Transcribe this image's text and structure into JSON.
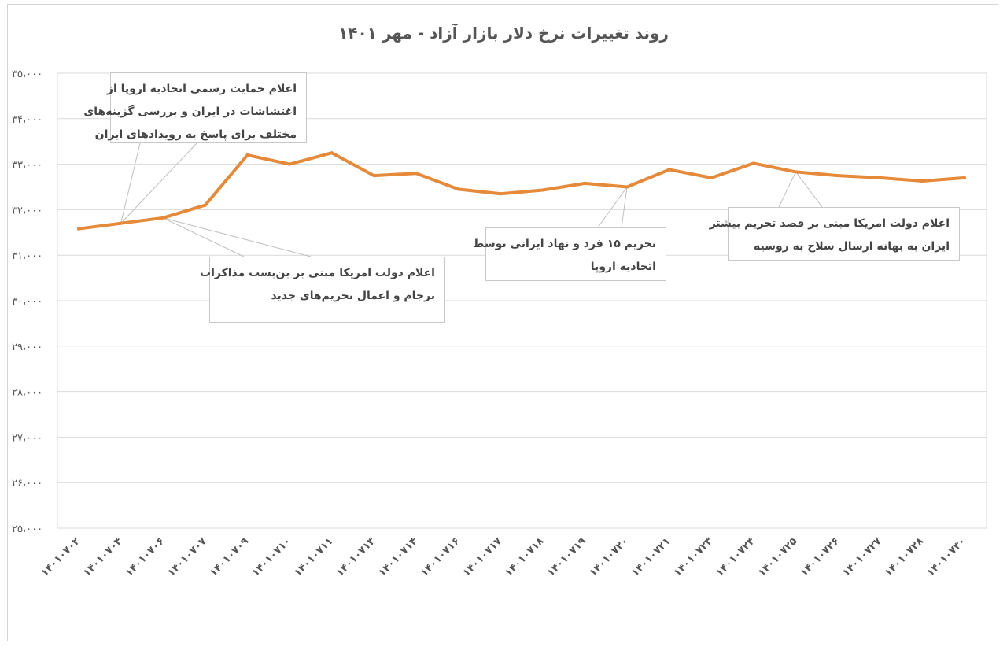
{
  "chart_data": {
    "type": "line",
    "title": "روند تغییرات نرخ دلار بازار آزاد - مهر ۱۴۰۱",
    "xlabel": "",
    "ylabel": "",
    "ylim": [
      25000,
      35000
    ],
    "yticks": [
      {
        "value": 35000,
        "label": "۳۵،۰۰۰"
      },
      {
        "value": 34000,
        "label": "۳۴،۰۰۰"
      },
      {
        "value": 33000,
        "label": "۳۳،۰۰۰"
      },
      {
        "value": 32000,
        "label": "۳۲،۰۰۰"
      },
      {
        "value": 31000,
        "label": "۳۱،۰۰۰"
      },
      {
        "value": 30000,
        "label": "۳۰،۰۰۰"
      },
      {
        "value": 29000,
        "label": "۲۹،۰۰۰"
      },
      {
        "value": 28000,
        "label": "۲۸،۰۰۰"
      },
      {
        "value": 27000,
        "label": "۲۷،۰۰۰"
      },
      {
        "value": 26000,
        "label": "۲۶،۰۰۰"
      },
      {
        "value": 25000,
        "label": "۲۵،۰۰۰"
      }
    ],
    "categories": [
      "۱۴۰۱۰۷۰۲",
      "۱۴۰۱۰۷۰۴",
      "۱۴۰۱۰۷۰۶",
      "۱۴۰۱۰۷۰۷",
      "۱۴۰۱۰۷۰۹",
      "۱۴۰۱۰۷۱۰",
      "۱۴۰۱۰۷۱۱",
      "۱۴۰۱۰۷۱۳",
      "۱۴۰۱۰۷۱۴",
      "۱۴۰۱۰۷۱۶",
      "۱۴۰۱۰۷۱۷",
      "۱۴۰۱۰۷۱۸",
      "۱۴۰۱۰۷۱۹",
      "۱۴۰۱۰۷۲۰",
      "۱۴۰۱۰۷۲۱",
      "۱۴۰۱۰۷۲۳",
      "۱۴۰۱۰۷۲۴",
      "۱۴۰۱۰۷۲۵",
      "۱۴۰۱۰۷۲۶",
      "۱۴۰۱۰۷۲۷",
      "۱۴۰۱۰۷۲۸",
      "۱۴۰۱۰۷۳۰"
    ],
    "series": [
      {
        "values": [
          31580,
          31700,
          31820,
          32100,
          33200,
          33000,
          33250,
          32750,
          32800,
          32450,
          32350,
          32430,
          32580,
          32500,
          32880,
          32700,
          33020,
          32830,
          32750,
          32700,
          32630,
          32700
        ]
      }
    ],
    "grid": true,
    "line_color": "#e58a3a",
    "annotations": [
      {
        "point_index": 1,
        "lines": [
          "اعلام حمایت رسمی اتحادیه اروپا از",
          "اغتشاشات در ایران و بررسی گزینه‌های",
          "مختلف برای پاسخ به رویدادهای ایران"
        ]
      },
      {
        "point_index": 2,
        "lines": [
          "اعلام دولت امریکا مبنی بر بن‌بست مذاکرات",
          "برجام و اعمال تحریم‌های جدید"
        ]
      },
      {
        "point_index": 13,
        "lines": [
          "تحریم ۱۵ فرد و نهاد ایرانی توسط",
          "اتحادیه اروپا"
        ]
      },
      {
        "point_index": 17,
        "lines": [
          "اعلام دولت امریکا مبنی بر قصد تحریم بیشتر",
          "ایران به بهانه ارسال سلاح به روسیه"
        ]
      }
    ]
  }
}
